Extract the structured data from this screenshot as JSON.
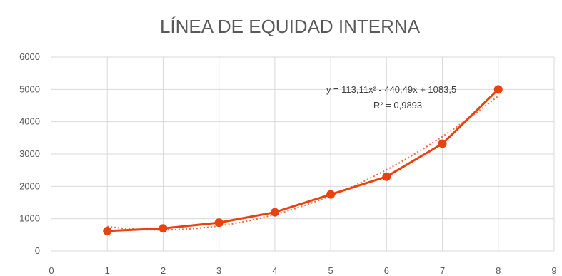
{
  "chart_data": {
    "type": "line",
    "title": "LÍNEA DE EQUIDAD INTERNA",
    "xlabel": "",
    "ylabel": "",
    "xlim": [
      0,
      9
    ],
    "ylim": [
      0,
      6000
    ],
    "x_ticks": [
      "0",
      "1",
      "2",
      "3",
      "4",
      "5",
      "6",
      "7",
      "8",
      "9"
    ],
    "y_ticks": [
      "0",
      "1000",
      "2000",
      "3000",
      "4000",
      "5000",
      "6000"
    ],
    "grid": true,
    "series": [
      {
        "x": [
          1,
          2,
          3,
          4,
          5,
          6,
          7,
          8
        ],
        "values": [
          620,
          700,
          880,
          1200,
          1750,
          2300,
          3320,
          5000
        ],
        "color": "#e8420f",
        "marker": "circle"
      }
    ],
    "trendline": {
      "type": "polynomial",
      "order": 2,
      "coefficients": [
        113.11,
        -440.49,
        1083.5
      ],
      "color": "#e8420f",
      "style": "dotted",
      "equation": "y = 113,11x² - 440,49x + 1083,5",
      "r_squared": "R² = 0,9893"
    }
  }
}
